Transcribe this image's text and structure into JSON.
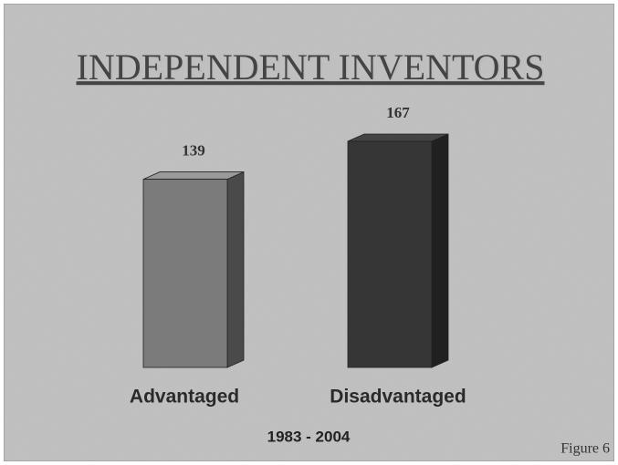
{
  "chart_data": {
    "type": "bar3d",
    "title": "INDEPENDENT INVENTORS",
    "categories": [
      "Advantaged",
      "Disadvantaged"
    ],
    "values": [
      139,
      167
    ],
    "colors": [
      "#7b7b7b",
      "#363636"
    ],
    "x_label": "1983 - 2004",
    "annotation": "Figure 6"
  }
}
